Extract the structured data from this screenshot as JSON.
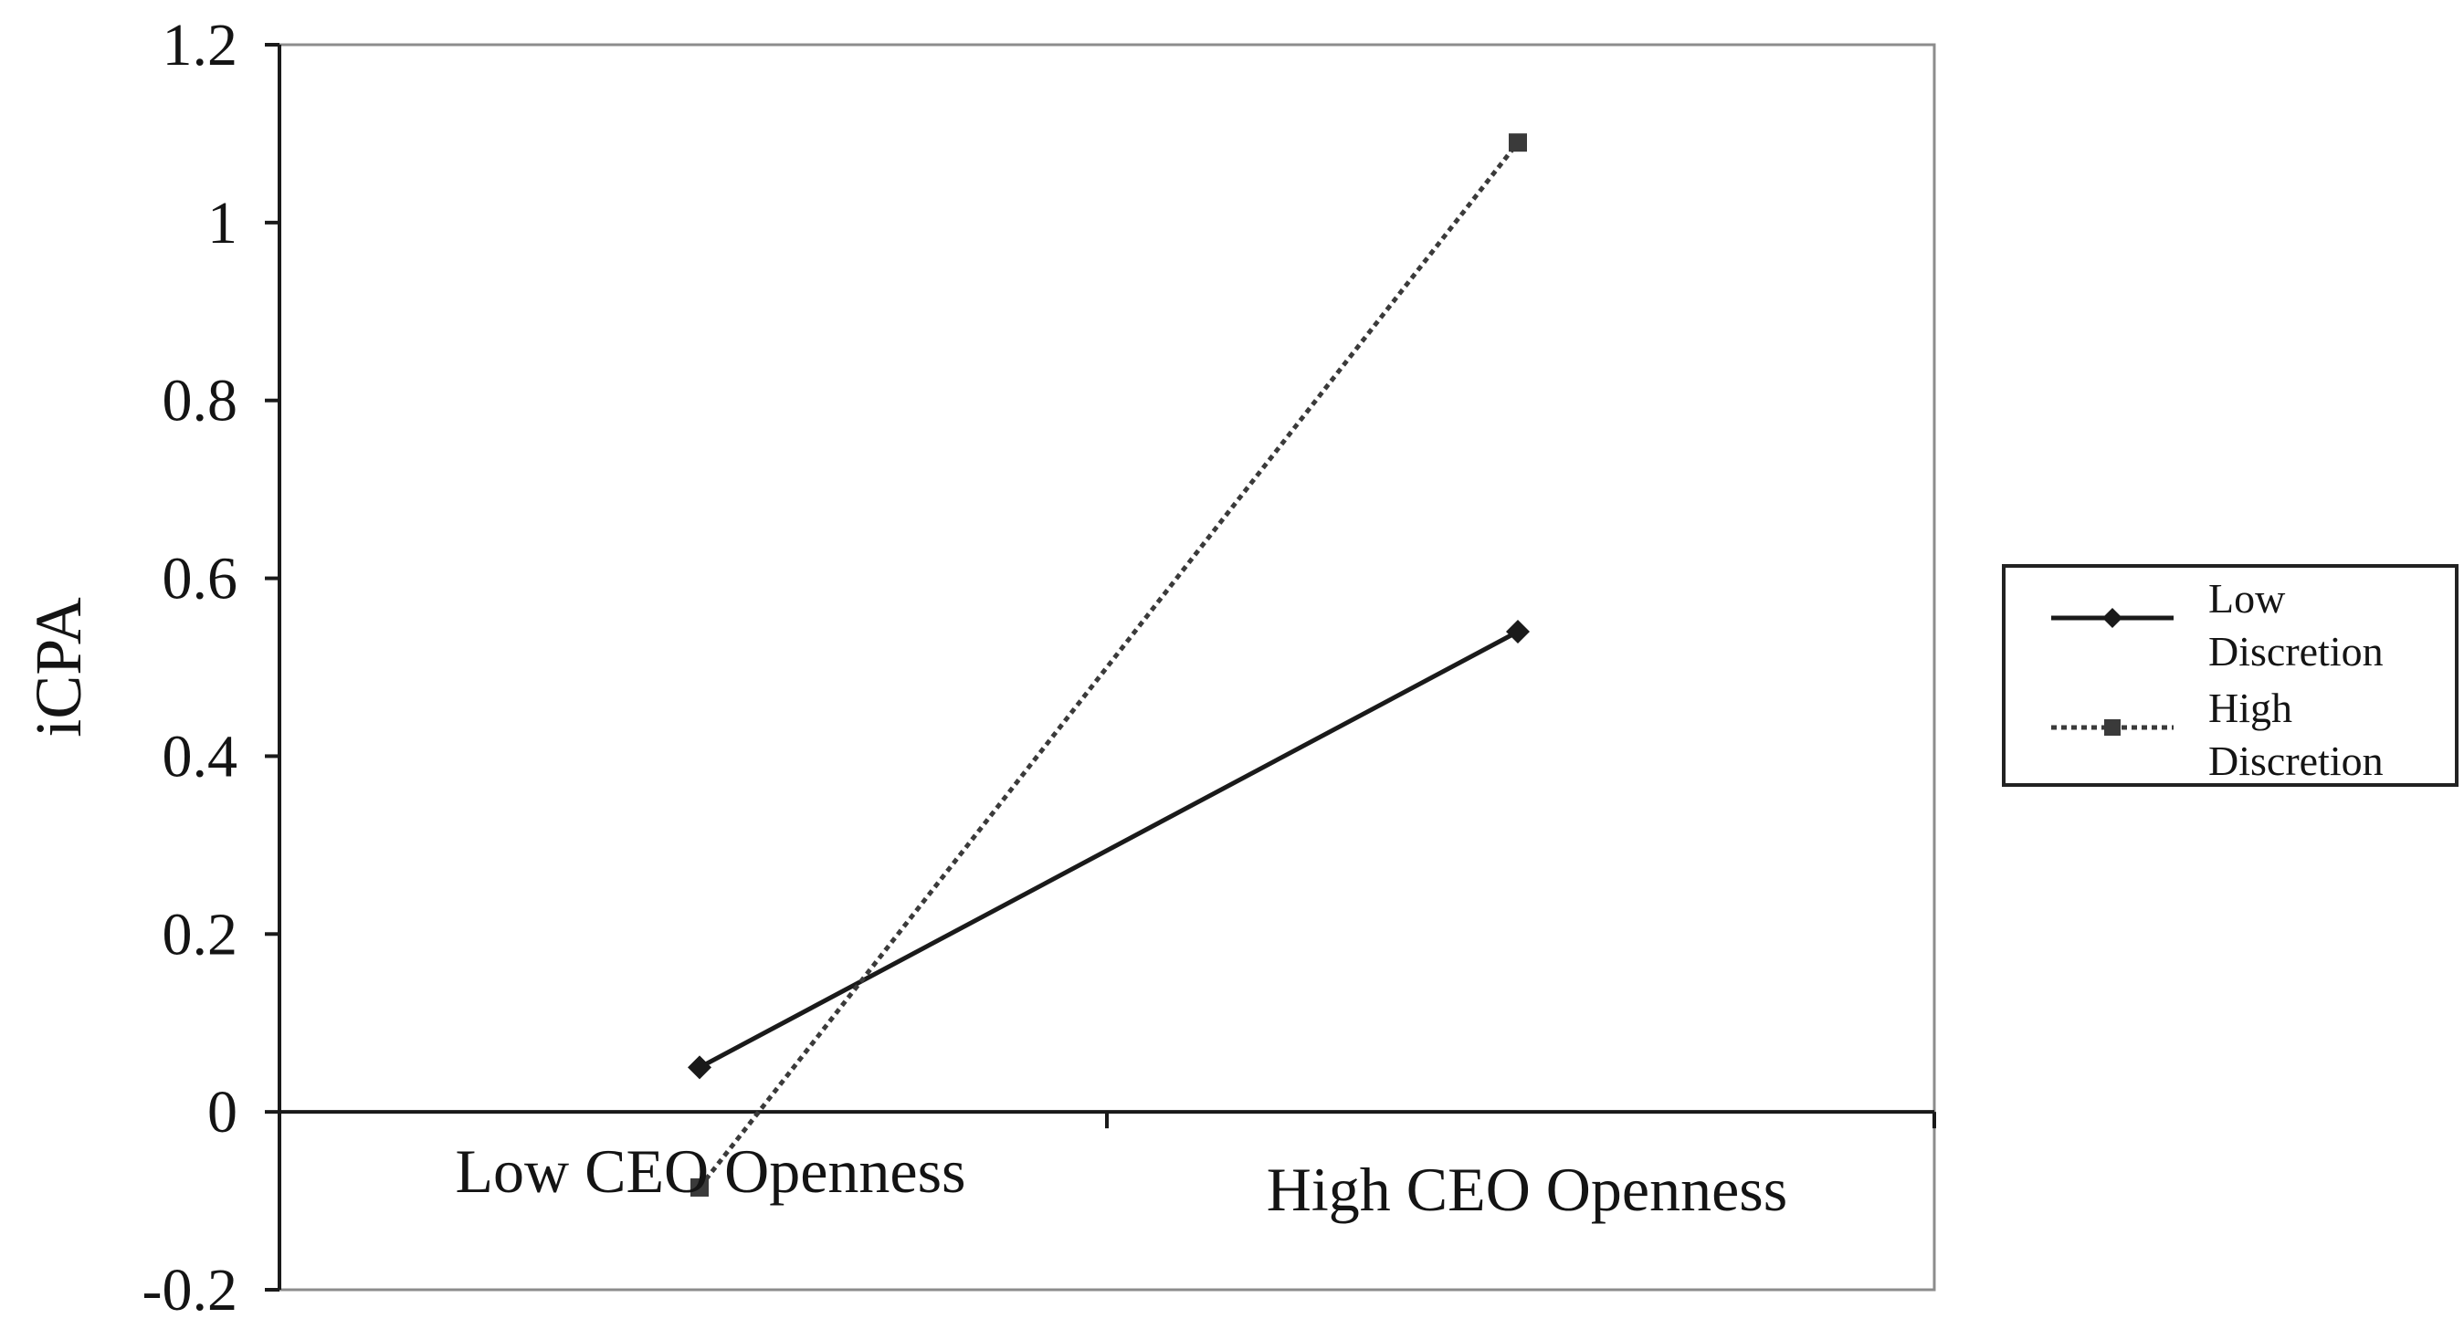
{
  "chart_data": {
    "type": "line",
    "title": "",
    "xlabel": "",
    "ylabel": "iCPA",
    "categories": [
      "Low CEO Openness",
      "High CEO Openness"
    ],
    "ylim": [
      -0.2,
      1.2
    ],
    "yticks": [
      "-0.2",
      "0",
      "0.2",
      "0.4",
      "0.6",
      "0.8",
      "1",
      "1.2"
    ],
    "grid": false,
    "legend_position": "right",
    "series": [
      {
        "name": "Low Discretion",
        "values": [
          0.05,
          0.54
        ],
        "marker": "diamond",
        "line_style": "solid",
        "color": "#1a1a1a"
      },
      {
        "name": "High Discretion",
        "values": [
          -0.085,
          1.09
        ],
        "marker": "square",
        "line_style": "dotted",
        "color": "#3a3a3a"
      }
    ],
    "legend_entries": [
      {
        "lines": [
          "Low",
          "Discretion"
        ]
      },
      {
        "lines": [
          "High",
          "Discretion"
        ]
      }
    ]
  }
}
